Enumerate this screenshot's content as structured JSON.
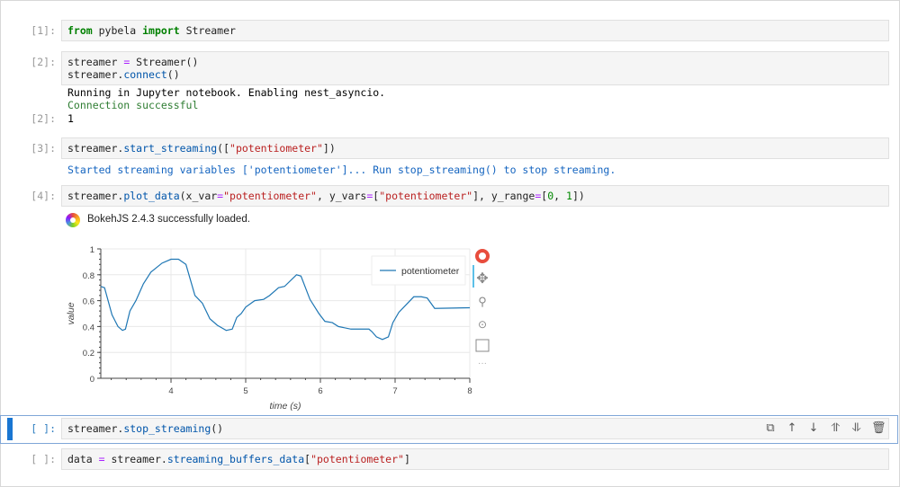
{
  "cells": [
    {
      "prompt": "[1]:",
      "top": 22,
      "lines": [
        [
          [
            "from",
            "kw"
          ],
          [
            " pybela ",
            "pl"
          ],
          [
            "import",
            "kw"
          ],
          [
            " Streamer",
            "pl"
          ]
        ]
      ]
    },
    {
      "prompt": "[2]:",
      "top": 57,
      "lines": [
        [
          [
            "streamer ",
            "pl"
          ],
          [
            "=",
            "op"
          ],
          [
            " Streamer()",
            "pl"
          ]
        ],
        [
          [
            "streamer.",
            "pl"
          ],
          [
            "connect",
            "fn"
          ],
          [
            "()",
            "pl"
          ]
        ]
      ]
    },
    {
      "prompt": "[3]:",
      "top": 153,
      "lines": [
        [
          [
            "streamer.",
            "pl"
          ],
          [
            "start_streaming",
            "fn"
          ],
          [
            "([",
            "pl"
          ],
          [
            "\"potentiometer\"",
            "str"
          ],
          [
            "])",
            "pl"
          ]
        ]
      ]
    },
    {
      "prompt": "[4]:",
      "top": 206,
      "lines": [
        [
          [
            "streamer.",
            "pl"
          ],
          [
            "plot_data",
            "fn"
          ],
          [
            "(x_var",
            "pl"
          ],
          [
            "=",
            "op"
          ],
          [
            "\"potentiometer\"",
            "str"
          ],
          [
            ", y_vars",
            "pl"
          ],
          [
            "=",
            "op"
          ],
          [
            "[",
            "pl"
          ],
          [
            "\"potentiometer\"",
            "str"
          ],
          [
            "], y_range",
            "pl"
          ],
          [
            "=",
            "op"
          ],
          [
            "[",
            "pl"
          ],
          [
            "0",
            "num"
          ],
          [
            ", ",
            "pl"
          ],
          [
            "1",
            "num"
          ],
          [
            "])",
            "pl"
          ]
        ]
      ]
    },
    {
      "prompt": "[ ]:",
      "top": 465,
      "lines": [
        [
          [
            "streamer.",
            "pl"
          ],
          [
            "stop_streaming",
            "fn"
          ],
          [
            "()",
            "pl"
          ]
        ]
      ]
    },
    {
      "prompt": "[ ]:",
      "top": 499,
      "lines": [
        [
          [
            "data ",
            "pl"
          ],
          [
            "=",
            "op"
          ],
          [
            " streamer.",
            "pl"
          ],
          [
            "streaming_buffers_data",
            "fn"
          ],
          [
            "[",
            "pl"
          ],
          [
            "\"potentiometer\"",
            "str"
          ],
          [
            "]",
            "pl"
          ]
        ]
      ]
    }
  ],
  "outputs": {
    "cell2_stdout": "Running in Jupyter notebook. Enabling nest_asyncio.",
    "cell2_status": "Connection successful",
    "cell2_prompt": "[2]:",
    "cell2_result": "1",
    "cell3_stdout": "Started streaming variables ['potentiometer']... Run stop_streaming() to stop streaming.",
    "cell4_bokeh": "BokehJS 2.4.3 successfully loaded."
  },
  "toolbar_icons": [
    "duplicate-icon",
    "move-up-icon",
    "move-down-icon",
    "insert-above-icon",
    "insert-below-icon",
    "delete-icon"
  ],
  "bokeh_tools": [
    "bokeh-logo-icon",
    "pan-icon",
    "box-zoom-icon",
    "wheel-zoom-icon",
    "save-icon",
    "more-icon"
  ],
  "colors": {
    "line": "#1f77b4",
    "selected": "#1976d2",
    "success": "#2e7d32",
    "info": "#1565c0"
  },
  "chart_data": {
    "type": "line",
    "xlabel": "time (s)",
    "ylabel": "value",
    "xlim": [
      3.06,
      8
    ],
    "ylim": [
      0,
      1
    ],
    "xticks": [
      4,
      5,
      6,
      7,
      8
    ],
    "yticks": [
      0,
      0.2,
      0.4,
      0.6,
      0.8,
      1
    ],
    "ytick_labels": [
      "0",
      "0.2",
      "0.4",
      "0.6",
      "0.8",
      "1"
    ],
    "grid": true,
    "legend_placement": "top-right",
    "series": [
      {
        "name": "potentiometer",
        "x": [
          3.06,
          3.11,
          3.21,
          3.29,
          3.35,
          3.39,
          3.45,
          3.53,
          3.63,
          3.73,
          3.88,
          4.0,
          4.1,
          4.2,
          4.32,
          4.42,
          4.52,
          4.62,
          4.74,
          4.82,
          4.88,
          4.94,
          5.0,
          5.12,
          5.24,
          5.32,
          5.44,
          5.52,
          5.68,
          5.74,
          5.86,
          5.98,
          6.06,
          6.16,
          6.24,
          6.41,
          6.65,
          6.69,
          6.75,
          6.83,
          6.91,
          6.97,
          7.05,
          7.15,
          7.25,
          7.35,
          7.43,
          7.53,
          8.0
        ],
        "y": [
          0.71,
          0.7,
          0.49,
          0.4,
          0.37,
          0.38,
          0.52,
          0.6,
          0.73,
          0.82,
          0.89,
          0.92,
          0.92,
          0.88,
          0.64,
          0.58,
          0.46,
          0.41,
          0.37,
          0.38,
          0.47,
          0.5,
          0.55,
          0.6,
          0.61,
          0.64,
          0.7,
          0.71,
          0.8,
          0.79,
          0.61,
          0.5,
          0.44,
          0.43,
          0.4,
          0.38,
          0.38,
          0.36,
          0.32,
          0.3,
          0.32,
          0.43,
          0.51,
          0.57,
          0.63,
          0.63,
          0.62,
          0.54,
          0.545
        ]
      }
    ]
  }
}
